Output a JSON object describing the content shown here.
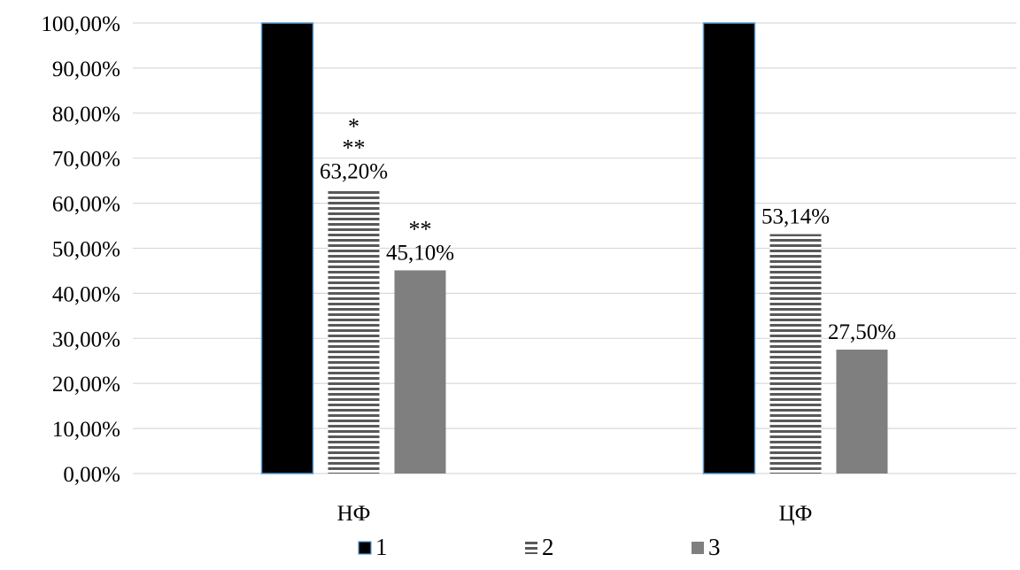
{
  "chart_data": {
    "type": "bar",
    "categories": [
      "НФ",
      "ЦФ"
    ],
    "series": [
      {
        "name": "1",
        "values": [
          100.0,
          100.0
        ],
        "color": "#000000",
        "outline": "#5b9bd5",
        "pattern": "solid",
        "label": [
          "",
          ""
        ]
      },
      {
        "name": "2",
        "values": [
          63.2,
          53.14
        ],
        "color": "#595959",
        "pattern": "horizontal-stripes",
        "label": [
          "63,20%",
          "53,14%"
        ]
      },
      {
        "name": "3",
        "values": [
          45.1,
          27.5
        ],
        "color": "#7f7f7f",
        "pattern": "solid",
        "label": [
          "45,10%",
          "27,50%"
        ]
      }
    ],
    "annotations": [
      {
        "category": "НФ",
        "series": "2",
        "lines": [
          "*",
          "**"
        ]
      },
      {
        "category": "НФ",
        "series": "3",
        "lines": [
          "**"
        ]
      }
    ],
    "ylim": [
      0,
      100
    ],
    "yticks": [
      "0,00%",
      "10,00%",
      "20,00%",
      "30,00%",
      "40,00%",
      "50,00%",
      "60,00%",
      "70,00%",
      "80,00%",
      "90,00%",
      "100,00%"
    ],
    "grid": true,
    "legend": "bottom",
    "title": "",
    "xlabel": "",
    "ylabel": ""
  }
}
